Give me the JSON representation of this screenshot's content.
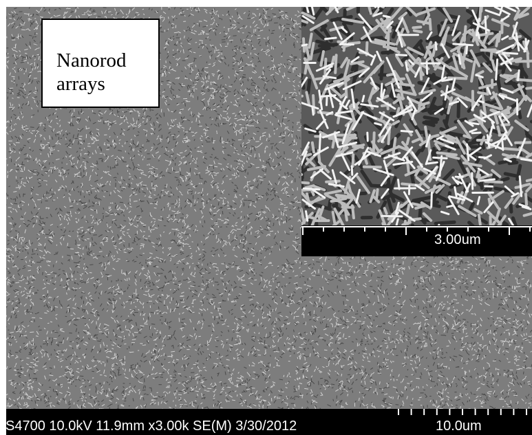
{
  "image": {
    "description_label": [
      "Nanorod",
      "arrays"
    ],
    "inset_scale": "3.00um",
    "footer_info": "S4700 10.0kV 11.9mm x3.00k SE(M) 3/30/2012",
    "footer_scale": "10.0um",
    "colors": {
      "background": "#7d7d7d",
      "bar": "#000000",
      "text_on_bar": "#ffffff",
      "label_box": "#ffffff"
    }
  }
}
